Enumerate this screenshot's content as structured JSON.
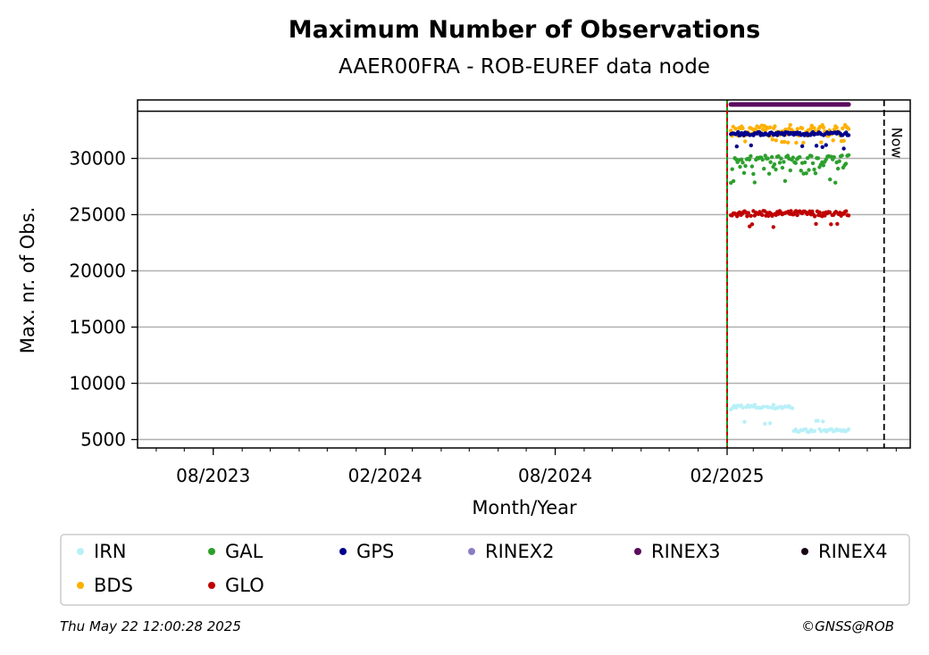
{
  "chart_data": {
    "type": "scatter",
    "title": "Maximum Number of Observations",
    "subtitle": "AAER00FRA - ROB-EUREF data node",
    "xlabel": "Month/Year",
    "ylabel": "Max. nr. of Obs.",
    "xlim": [
      "2023-05-12",
      "2025-08-16"
    ],
    "ylim": [
      4250,
      35200
    ],
    "x_ticks": [
      {
        "date": "2023-08-01",
        "label": "08/2023"
      },
      {
        "date": "2024-02-01",
        "label": "02/2024"
      },
      {
        "date": "2024-08-01",
        "label": "08/2024"
      },
      {
        "date": "2025-02-01",
        "label": "02/2025"
      }
    ],
    "y_ticks": [
      {
        "value": 5000,
        "label": "5000"
      },
      {
        "value": 10000,
        "label": "10000"
      },
      {
        "value": 15000,
        "label": "15000"
      },
      {
        "value": 20000,
        "label": "20000"
      },
      {
        "value": 25000,
        "label": "25000"
      },
      {
        "value": 30000,
        "label": "30000"
      }
    ],
    "grid": "horizontal",
    "max_line": 34200,
    "start_line_date": "2025-02-01",
    "now_line": {
      "date": "2025-07-19",
      "label": "Now"
    },
    "series": [
      {
        "name": "IRN",
        "color": "#b8f0f8",
        "start": "2025-02-05",
        "end": "2025-06-11",
        "count": 70,
        "base": 7900,
        "spread": 220,
        "drop": {
          "from": "2025-04-12",
          "to": 5800
        },
        "outlier_low": 6300
      },
      {
        "name": "GAL",
        "color": "#2ca02c",
        "start": "2025-02-05",
        "end": "2025-06-11",
        "count": 90,
        "base": 30200,
        "spread": 1600,
        "outlier_low": 27800
      },
      {
        "name": "GPS",
        "color": "#00008b",
        "start": "2025-02-05",
        "end": "2025-06-11",
        "count": 100,
        "base": 32200,
        "spread": 150,
        "outlier_low": 30800
      },
      {
        "name": "RINEX2",
        "color": "#8c7cc4",
        "start": null,
        "end": null,
        "count": 0
      },
      {
        "name": "RINEX3",
        "color": "#5b0a5e",
        "start": "2025-02-05",
        "end": "2025-06-11",
        "count": 110,
        "base": 34800,
        "spread": 0
      },
      {
        "name": "RINEX4",
        "color": "#1a0514",
        "start": null,
        "end": null,
        "count": 0
      },
      {
        "name": "BDS",
        "color": "#ffb000",
        "start": "2025-02-05",
        "end": "2025-06-11",
        "count": 100,
        "base": 32500,
        "spread": 500,
        "outlier_low": 31300
      },
      {
        "name": "GLO",
        "color": "#c00000",
        "start": "2025-02-05",
        "end": "2025-06-11",
        "count": 95,
        "base": 25100,
        "spread": 250,
        "outlier_low": 23900
      }
    ],
    "legend": {
      "placement": "bottom",
      "columns": 6
    }
  },
  "footer": {
    "timestamp": "Thu May 22 12:00:28 2025",
    "credit": "©GNSS@ROB"
  }
}
